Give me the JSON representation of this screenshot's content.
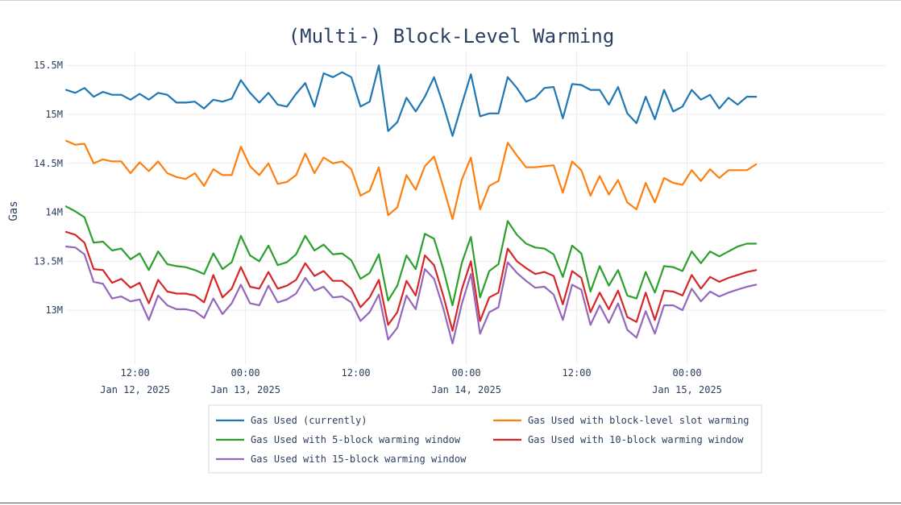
{
  "chart_data": {
    "type": "line",
    "title": "(Multi-) Block-Level Warming",
    "xlabel": "",
    "ylabel": "Gas",
    "x_unit": "hours since Jan 11, 2025 00:00",
    "xlim": [
      4.5,
      93.5
    ],
    "ylim": [
      12.45,
      15.65
    ],
    "y_ticks": [
      {
        "value": 13,
        "label": "13M"
      },
      {
        "value": 13.5,
        "label": "13.5M"
      },
      {
        "value": 14,
        "label": "14M"
      },
      {
        "value": 14.5,
        "label": "14.5M"
      },
      {
        "value": 15,
        "label": "15M"
      },
      {
        "value": 15.5,
        "label": "15.5M"
      }
    ],
    "x_ticks": [
      {
        "value": 12,
        "time": "12:00",
        "date": "Jan 12, 2025"
      },
      {
        "value": 24,
        "time": "00:00",
        "date": "Jan 13, 2025"
      },
      {
        "value": 36,
        "time": "12:00",
        "date": ""
      },
      {
        "value": 48,
        "time": "00:00",
        "date": "Jan 14, 2025"
      },
      {
        "value": 60,
        "time": "12:00",
        "date": ""
      },
      {
        "value": 72,
        "time": "00:00",
        "date": "Jan 15, 2025"
      }
    ],
    "grid": true,
    "legend": "bottom-center",
    "x": [
      4.5,
      5.5,
      6.5,
      7.5,
      8.5,
      9.5,
      10.5,
      11.5,
      12.5,
      13.5,
      14.5,
      15.5,
      16.5,
      17.5,
      18.5,
      19.5,
      20.5,
      21.5,
      22.5,
      23.5,
      24.5,
      25.5,
      26.5,
      27.5,
      28.5,
      29.5,
      30.5,
      31.5,
      32.5,
      33.5,
      34.5,
      35.5,
      36.5,
      37.5,
      38.5,
      39.5,
      40.5,
      41.5,
      42.5,
      43.5,
      44.5,
      45.5,
      46.5,
      47.5,
      48.5,
      49.5,
      50.5,
      51.5,
      52.5,
      53.5,
      54.5,
      55.5,
      56.5,
      57.5,
      58.5,
      59.5,
      60.5,
      61.5,
      62.5,
      63.5,
      64.5,
      65.5,
      66.5,
      67.5,
      68.5,
      69.5,
      70.5,
      71.5,
      72.5,
      73.5,
      74.5,
      75.5,
      76.5,
      77.5,
      78.5,
      79.5
    ],
    "series": [
      {
        "name": "Gas Used (currently)",
        "color": "#1f77b4",
        "values": [
          15.25,
          15.22,
          15.27,
          15.18,
          15.23,
          15.2,
          15.2,
          15.15,
          15.21,
          15.15,
          15.22,
          15.2,
          15.12,
          15.12,
          15.13,
          15.06,
          15.15,
          15.13,
          15.16,
          15.35,
          15.22,
          15.12,
          15.22,
          15.1,
          15.08,
          15.21,
          15.32,
          15.08,
          15.42,
          15.38,
          15.43,
          15.38,
          15.08,
          15.13,
          15.5,
          14.83,
          14.92,
          15.17,
          15.03,
          15.18,
          15.38,
          15.1,
          14.78,
          15.1,
          15.41,
          14.98,
          15.01,
          15.01,
          15.38,
          15.27,
          15.13,
          15.17,
          15.27,
          15.28,
          14.96,
          15.31,
          15.3,
          15.25,
          15.25,
          15.1,
          15.28,
          15.01,
          14.91,
          15.18,
          14.95,
          15.25,
          15.03,
          15.08,
          15.25,
          15.15,
          15.2,
          15.06,
          15.17,
          15.1,
          15.18,
          15.18
        ]
      },
      {
        "name": "Gas Used with block-level slot warming",
        "color": "#ff7f0e",
        "values": [
          14.73,
          14.69,
          14.7,
          14.5,
          14.54,
          14.52,
          14.52,
          14.4,
          14.51,
          14.42,
          14.52,
          14.4,
          14.36,
          14.34,
          14.4,
          14.27,
          14.44,
          14.38,
          14.38,
          14.67,
          14.47,
          14.38,
          14.5,
          14.29,
          14.31,
          14.38,
          14.6,
          14.4,
          14.56,
          14.5,
          14.52,
          14.44,
          14.17,
          14.22,
          14.46,
          13.97,
          14.05,
          14.38,
          14.23,
          14.47,
          14.57,
          14.26,
          13.93,
          14.33,
          14.56,
          14.03,
          14.27,
          14.32,
          14.71,
          14.58,
          14.46,
          14.46,
          14.47,
          14.48,
          14.2,
          14.52,
          14.43,
          14.17,
          14.37,
          14.18,
          14.33,
          14.1,
          14.03,
          14.3,
          14.1,
          14.35,
          14.3,
          14.28,
          14.43,
          14.32,
          14.44,
          14.35,
          14.43,
          14.43,
          14.43,
          14.49
        ]
      },
      {
        "name": "Gas Used with 5-block warming window",
        "color": "#2ca02c",
        "values": [
          14.06,
          14.01,
          13.95,
          13.69,
          13.7,
          13.61,
          13.63,
          13.52,
          13.58,
          13.41,
          13.6,
          13.47,
          13.45,
          13.44,
          13.41,
          13.37,
          13.58,
          13.42,
          13.49,
          13.76,
          13.56,
          13.5,
          13.66,
          13.46,
          13.49,
          13.57,
          13.76,
          13.61,
          13.67,
          13.57,
          13.58,
          13.51,
          13.32,
          13.38,
          13.57,
          13.1,
          13.25,
          13.56,
          13.42,
          13.78,
          13.73,
          13.42,
          13.05,
          13.48,
          13.75,
          13.13,
          13.4,
          13.47,
          13.91,
          13.77,
          13.68,
          13.64,
          13.63,
          13.57,
          13.34,
          13.66,
          13.58,
          13.19,
          13.45,
          13.25,
          13.41,
          13.15,
          13.12,
          13.39,
          13.18,
          13.45,
          13.44,
          13.4,
          13.6,
          13.48,
          13.6,
          13.55,
          13.6,
          13.65,
          13.68,
          13.68
        ]
      },
      {
        "name": "Gas Used with 10-block warming window",
        "color": "#d62728",
        "values": [
          13.8,
          13.77,
          13.69,
          13.42,
          13.41,
          13.28,
          13.32,
          13.23,
          13.28,
          13.07,
          13.31,
          13.19,
          13.17,
          13.17,
          13.15,
          13.08,
          13.36,
          13.13,
          13.22,
          13.44,
          13.24,
          13.22,
          13.39,
          13.22,
          13.25,
          13.31,
          13.48,
          13.35,
          13.4,
          13.3,
          13.3,
          13.22,
          13.03,
          13.13,
          13.31,
          12.85,
          12.98,
          13.3,
          13.15,
          13.56,
          13.46,
          13.15,
          12.79,
          13.21,
          13.5,
          12.89,
          13.13,
          13.18,
          13.63,
          13.5,
          13.43,
          13.37,
          13.39,
          13.35,
          13.06,
          13.4,
          13.33,
          12.98,
          13.18,
          13.01,
          13.2,
          12.93,
          12.88,
          13.18,
          12.9,
          13.2,
          13.19,
          13.15,
          13.36,
          13.22,
          13.34,
          13.29,
          13.33,
          13.36,
          13.39,
          13.41
        ]
      },
      {
        "name": "Gas Used with 15-block warming window",
        "color": "#9467bd",
        "values": [
          13.65,
          13.64,
          13.57,
          13.29,
          13.27,
          13.12,
          13.14,
          13.09,
          13.11,
          12.9,
          13.15,
          13.05,
          13.01,
          13.01,
          12.99,
          12.92,
          13.12,
          12.96,
          13.07,
          13.26,
          13.07,
          13.05,
          13.25,
          13.08,
          13.11,
          13.17,
          13.33,
          13.2,
          13.24,
          13.13,
          13.14,
          13.08,
          12.89,
          12.98,
          13.16,
          12.7,
          12.82,
          13.15,
          13.01,
          13.42,
          13.32,
          13.02,
          12.66,
          13.06,
          13.37,
          12.76,
          12.98,
          13.03,
          13.49,
          13.38,
          13.3,
          13.23,
          13.24,
          13.16,
          12.9,
          13.26,
          13.21,
          12.85,
          13.05,
          12.87,
          13.07,
          12.8,
          12.72,
          12.99,
          12.76,
          13.05,
          13.05,
          13.0,
          13.22,
          13.09,
          13.19,
          13.14,
          13.18,
          13.21,
          13.24,
          13.26
        ]
      }
    ]
  }
}
